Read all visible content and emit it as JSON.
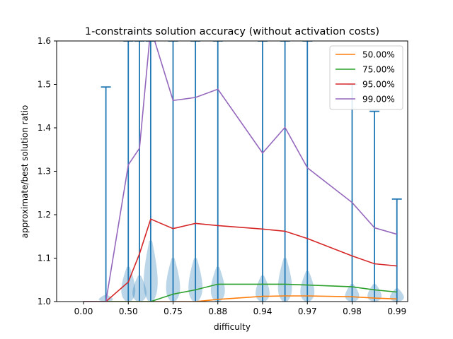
{
  "chart_data": {
    "type": "line",
    "title": "1-constraints solution accuracy (without activation costs)",
    "xlabel": "difficulty",
    "ylabel": "approximate/best solution ratio",
    "ylim": [
      1.0,
      1.6
    ],
    "x_tick_labels": [
      "0.00",
      "0.50",
      "0.75",
      "0.88",
      "0.94",
      "0.97",
      "0.98",
      "0.99"
    ],
    "y_ticks": [
      1.0,
      1.1,
      1.2,
      1.3,
      1.4,
      1.5,
      1.6
    ],
    "y_tick_labels": [
      "1.0",
      "1.1",
      "1.2",
      "1.3",
      "1.4",
      "1.5",
      "1.6"
    ],
    "x": [
      0.0,
      0.25,
      0.5,
      0.625,
      0.75,
      1.0,
      1.25,
      1.5,
      2.0,
      2.25,
      2.5,
      3.0,
      3.25,
      3.5
    ],
    "series": [
      {
        "name": "50.00%",
        "color": "#ff7f0e",
        "values": [
          1.0,
          1.0,
          1.0,
          1.0,
          1.0,
          1.0,
          1.0,
          1.005,
          1.012,
          1.013,
          1.013,
          1.011,
          1.008,
          1.006
        ]
      },
      {
        "name": "75.00%",
        "color": "#2ca02c",
        "values": [
          1.0,
          1.0,
          1.0,
          1.0,
          1.0,
          1.017,
          1.027,
          1.04,
          1.04,
          1.04,
          1.038,
          1.034,
          1.027,
          1.022
        ]
      },
      {
        "name": "95.00%",
        "color": "#d62728",
        "values": [
          1.0,
          1.0,
          1.045,
          1.11,
          1.19,
          1.168,
          1.18,
          1.175,
          1.167,
          1.162,
          1.145,
          1.105,
          1.087,
          1.082
        ]
      },
      {
        "name": "99.00%",
        "color": "#9467bd",
        "values": [
          1.0,
          1.0,
          1.315,
          1.353,
          1.63,
          1.463,
          1.47,
          1.489,
          1.342,
          1.401,
          1.308,
          1.228,
          1.17,
          1.155
        ]
      }
    ],
    "violins": [
      {
        "x": 0.25,
        "max": 1.494,
        "spread": 0.015
      },
      {
        "x": 0.5,
        "max": 1.6,
        "spread": 0.08
      },
      {
        "x": 0.625,
        "max": 1.6,
        "spread": 0.06
      },
      {
        "x": 0.75,
        "max": 1.6,
        "spread": 0.14
      },
      {
        "x": 1.0,
        "max": 1.6,
        "spread": 0.1
      },
      {
        "x": 1.25,
        "max": 1.6,
        "spread": 0.1
      },
      {
        "x": 1.5,
        "max": 1.6,
        "spread": 0.08
      },
      {
        "x": 2.0,
        "max": 1.6,
        "spread": 0.06
      },
      {
        "x": 2.25,
        "max": 1.6,
        "spread": 0.1
      },
      {
        "x": 2.5,
        "max": 1.6,
        "spread": 0.07
      },
      {
        "x": 3.0,
        "max": 1.5,
        "spread": 0.04
      },
      {
        "x": 3.25,
        "max": 1.438,
        "spread": 0.04
      },
      {
        "x": 3.5,
        "max": 1.236,
        "spread": 0.03
      }
    ],
    "violin_color": "#1f77b4",
    "legend_position": "top-right",
    "grid": false
  }
}
